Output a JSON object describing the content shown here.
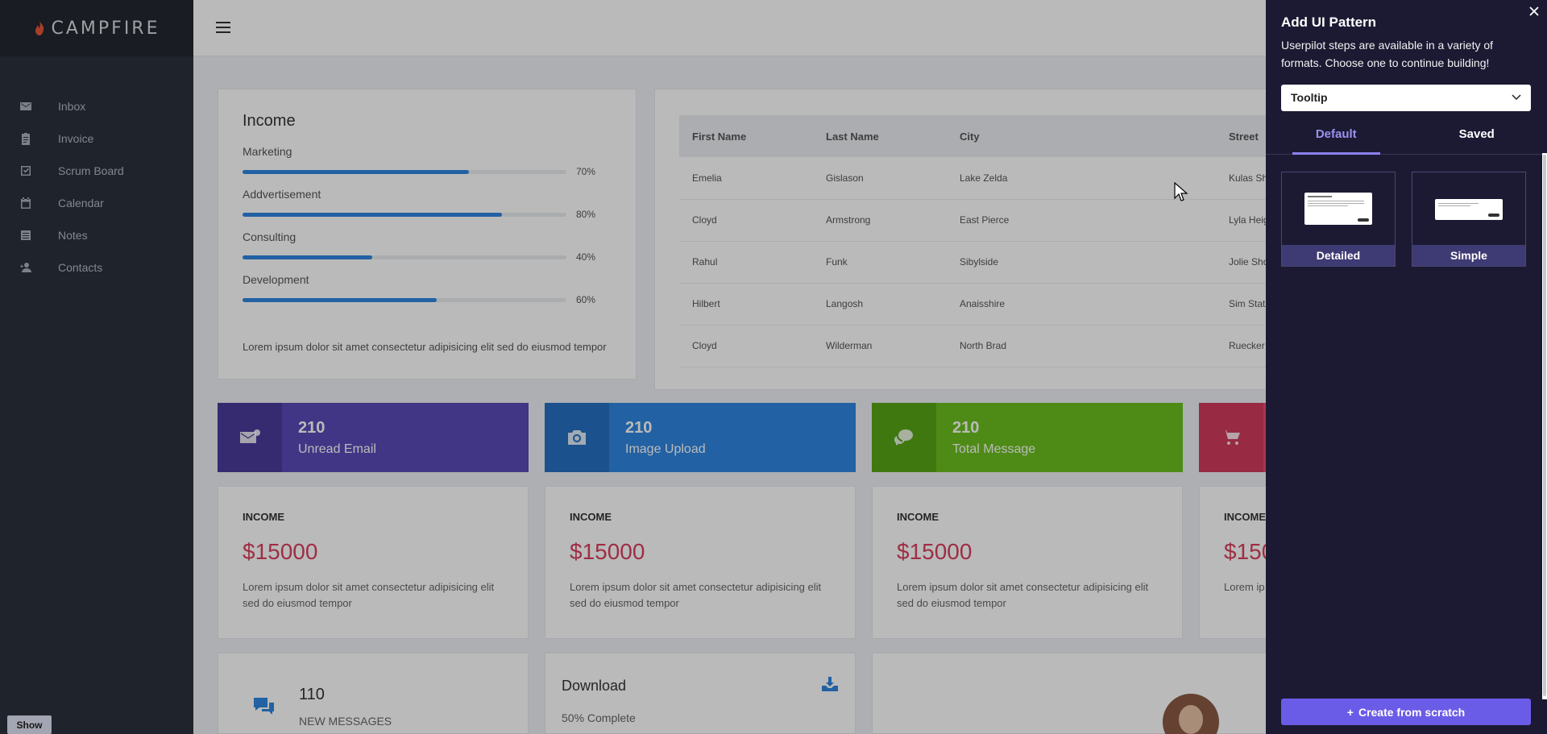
{
  "app": {
    "brand": "CAMPFIRE"
  },
  "sidebar": {
    "items": [
      {
        "label": "Inbox",
        "icon": "mail-icon"
      },
      {
        "label": "Invoice",
        "icon": "clipboard-icon"
      },
      {
        "label": "Scrum Board",
        "icon": "checkbox-icon"
      },
      {
        "label": "Calendar",
        "icon": "calendar-icon"
      },
      {
        "label": "Notes",
        "icon": "notes-icon"
      },
      {
        "label": "Contacts",
        "icon": "person-add-icon"
      }
    ],
    "show_label": "Show"
  },
  "income": {
    "title": "Income",
    "rows": [
      {
        "label": "Marketing",
        "value": 0.7,
        "pct": "70%"
      },
      {
        "label": "Addvertisement",
        "value": 0.8,
        "pct": "80%"
      },
      {
        "label": "Consulting",
        "value": 0.4,
        "pct": "40%"
      },
      {
        "label": "Development",
        "value": 0.6,
        "pct": "60%"
      }
    ],
    "footer": "Lorem ipsum dolor sit amet consectetur adipisicing elit sed do eiusmod tempor"
  },
  "table": {
    "headers": [
      "First Name",
      "Last Name",
      "City",
      "Street"
    ],
    "rows": [
      [
        "Emelia",
        "Gislason",
        "Lake Zelda",
        "Kulas Sh"
      ],
      [
        "Cloyd",
        "Armstrong",
        "East Pierce",
        "Lyla Heig"
      ],
      [
        "Rahul",
        "Funk",
        "Sibylside",
        "Jolie Sho"
      ],
      [
        "Hilbert",
        "Langosh",
        "Anaisshire",
        "Sim Stat"
      ],
      [
        "Cloyd",
        "Wilderman",
        "North Brad",
        "Ruecker"
      ]
    ]
  },
  "stats": [
    {
      "number": "210",
      "label": "Unread Email",
      "icon": "mail-icon",
      "color": "#5a4ab8",
      "icon_bg": "#4a3c9c"
    },
    {
      "number": "210",
      "label": "Image Upload",
      "icon": "camera-icon",
      "color": "#2f86e0",
      "icon_bg": "#256fc0"
    },
    {
      "number": "210",
      "label": "Total Message",
      "icon": "chat-icon",
      "color": "#6cbf1f",
      "icon_bg": "#58a516"
    },
    {
      "number": "",
      "label": "",
      "icon": "cart-icon",
      "color": "#e84a6f",
      "icon_bg": "#d13a5e"
    }
  ],
  "income_cards": [
    {
      "heading": "INCOME",
      "value": "$15000",
      "desc": "Lorem ipsum dolor sit amet consectetur adipisicing elit sed do eiusmod tempor"
    },
    {
      "heading": "INCOME",
      "value": "$15000",
      "desc": "Lorem ipsum dolor sit amet consectetur adipisicing elit sed do eiusmod tempor"
    },
    {
      "heading": "INCOME",
      "value": "$15000",
      "desc": "Lorem ipsum dolor sit amet consectetur adipisicing elit sed do eiusmod tempor"
    },
    {
      "heading": "INCOME",
      "value": "$150",
      "desc": "Lorem ip sed do"
    }
  ],
  "messages": {
    "number": "110",
    "label": "NEW MESSAGES"
  },
  "download": {
    "title": "Download",
    "progress_text": "50% Complete",
    "progress": 0.5
  },
  "panel": {
    "title": "Add UI Pattern",
    "description": "Userpilot steps are available in a variety of formats. Choose one to continue building!",
    "selected_type": "Tooltip",
    "tabs": [
      "Default",
      "Saved"
    ],
    "active_tab": "Default",
    "templates": [
      {
        "label": "Detailed"
      },
      {
        "label": "Simple"
      }
    ],
    "create_label": "Create from scratch",
    "accent": "#6b5ce7"
  }
}
